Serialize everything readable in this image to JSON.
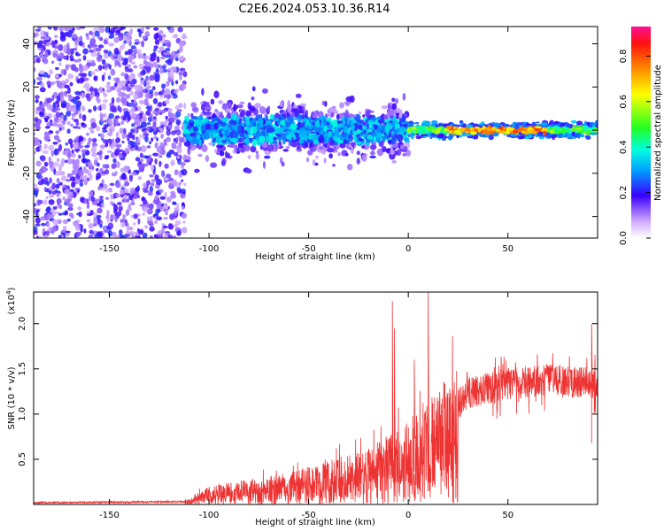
{
  "title": "C2E6.2024.053.10.36.R14",
  "chart_data": [
    {
      "type": "heatmap",
      "xlabel": "Height of straight line (km)",
      "ylabel": "Frequency (Hz)",
      "xlim": [
        -188,
        95
      ],
      "ylim": [
        -50,
        48
      ],
      "xticks": [
        -150,
        -100,
        -50,
        0,
        50
      ],
      "yticks": [
        -40,
        -20,
        0,
        20,
        40
      ],
      "colorbar": {
        "label": "Normalized spectral amplitude",
        "range": [
          0,
          0.93
        ],
        "ticks": [
          0.0,
          0.2,
          0.4,
          0.6,
          0.8
        ]
      },
      "regions": [
        {
          "name": "noise",
          "x_range": [
            -188,
            -112
          ],
          "y_range": [
            -50,
            48
          ],
          "amplitude": 0.12
        },
        {
          "name": "signal-wide",
          "x_range": [
            -112,
            0
          ],
          "y_center": 0,
          "y_halfwidth": 12,
          "amplitude": 0.3
        },
        {
          "name": "signal-narrow",
          "x_range": [
            0,
            95
          ],
          "y_center": 0,
          "y_halfwidth": 4,
          "amplitude": 0.75
        }
      ]
    },
    {
      "type": "line",
      "xlabel": "Height of straight line (km)",
      "ylabel": "SNR (10 * v/v)",
      "yscale_label": "(x10",
      "yscale_exp": "4",
      "xlim": [
        -188,
        95
      ],
      "ylim": [
        0,
        2.35
      ],
      "xticks": [
        -150,
        -100,
        -50,
        0,
        50
      ],
      "yticks": [
        0.5,
        1.0,
        1.5,
        2.0
      ],
      "ytick_labels": [
        "0.5",
        "1.0",
        "1.5",
        "2.0"
      ],
      "color": "#ee3333",
      "envelope": [
        {
          "x": -188,
          "y": 0.02
        },
        {
          "x": -112,
          "y": 0.03
        },
        {
          "x": -100,
          "y": 0.15
        },
        {
          "x": -80,
          "y": 0.2
        },
        {
          "x": -60,
          "y": 0.25
        },
        {
          "x": -40,
          "y": 0.35
        },
        {
          "x": -20,
          "y": 0.45
        },
        {
          "x": -10,
          "y": 0.55
        },
        {
          "x": 0,
          "y": 0.7
        },
        {
          "x": 10,
          "y": 0.8
        },
        {
          "x": 20,
          "y": 1.0
        },
        {
          "x": 30,
          "y": 1.25
        },
        {
          "x": 50,
          "y": 1.35
        },
        {
          "x": 70,
          "y": 1.4
        },
        {
          "x": 95,
          "y": 1.35
        }
      ],
      "spikes": [
        {
          "x": -8,
          "y": 2.25
        },
        {
          "x": -7,
          "y": 1.95
        },
        {
          "x": 10,
          "y": 2.35
        },
        {
          "x": 3,
          "y": 1.6
        },
        {
          "x": 92,
          "y": 2.0
        }
      ]
    }
  ]
}
